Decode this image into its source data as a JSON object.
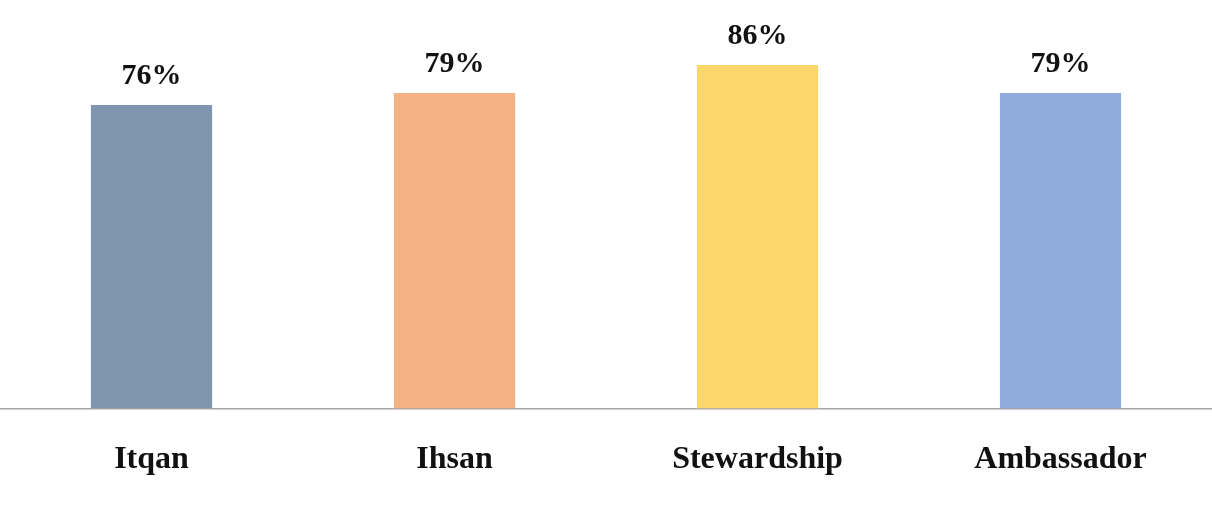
{
  "chart_data": {
    "type": "bar",
    "categories": [
      "Itqan",
      "Ihsan",
      "Stewardship",
      "Ambassador"
    ],
    "values": [
      76,
      79,
      86,
      79
    ],
    "colors": [
      "#8096b0",
      "#f4b183",
      "#fbd66b",
      "#8faadc"
    ],
    "value_labels": [
      "76%",
      "79%",
      "86%",
      "79%"
    ],
    "grid": false,
    "legend": false
  }
}
